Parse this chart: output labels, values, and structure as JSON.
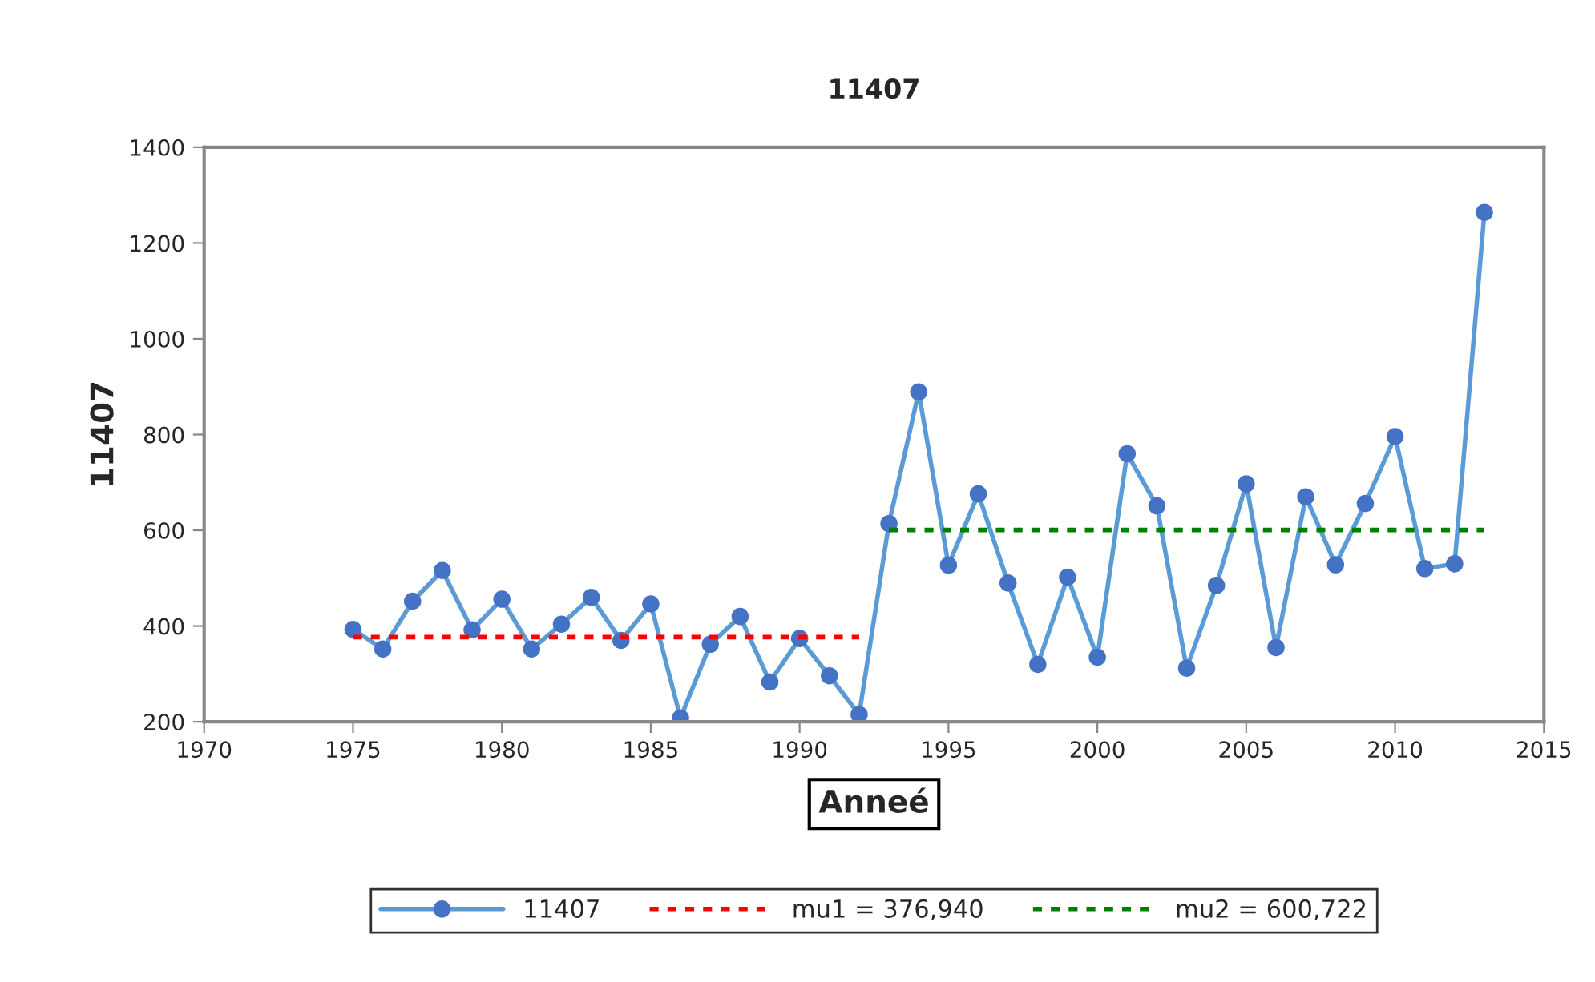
{
  "chart_data": {
    "type": "line",
    "title": "11407",
    "xlabel": "Anneé",
    "ylabel": "11407",
    "xlim": [
      1970,
      2015
    ],
    "xticks": [
      1970,
      1975,
      1980,
      1985,
      1990,
      1995,
      2000,
      2005,
      2010,
      2015
    ],
    "ylim": [
      200,
      1400
    ],
    "yticks": [
      200,
      400,
      600,
      800,
      1000,
      1200,
      1400
    ],
    "grid": false,
    "legend": "bottom",
    "series": [
      {
        "name": "11407",
        "color": "#5b9bd5",
        "marker": "circle",
        "line_style": "solid",
        "x": [
          1975,
          1976,
          1977,
          1978,
          1979,
          1980,
          1981,
          1982,
          1983,
          1984,
          1985,
          1986,
          1987,
          1988,
          1989,
          1990,
          1991,
          1992,
          1993,
          1994,
          1995,
          1996,
          1997,
          1998,
          1999,
          2000,
          2001,
          2002,
          2003,
          2004,
          2005,
          2006,
          2007,
          2008,
          2009,
          2010,
          2011,
          2012,
          2013
        ],
        "values": [
          393,
          352,
          452,
          516,
          392,
          456,
          352,
          404,
          460,
          370,
          446,
          208,
          362,
          420,
          283,
          374,
          296,
          215,
          614,
          889,
          527,
          676,
          490,
          320,
          502,
          335,
          760,
          651,
          312,
          485,
          697,
          355,
          670,
          528,
          656,
          796,
          520,
          530,
          1264
        ]
      },
      {
        "name": "mu1 = 376,940",
        "color": "#ff0000",
        "marker": "none",
        "line_style": "dotted",
        "x": [
          1975,
          1992
        ],
        "values": [
          376.94,
          376.94
        ]
      },
      {
        "name": "mu2 = 600,722",
        "color": "#008000",
        "marker": "none",
        "line_style": "dotted",
        "x": [
          1993,
          2013
        ],
        "values": [
          600.722,
          600.722
        ]
      }
    ]
  }
}
